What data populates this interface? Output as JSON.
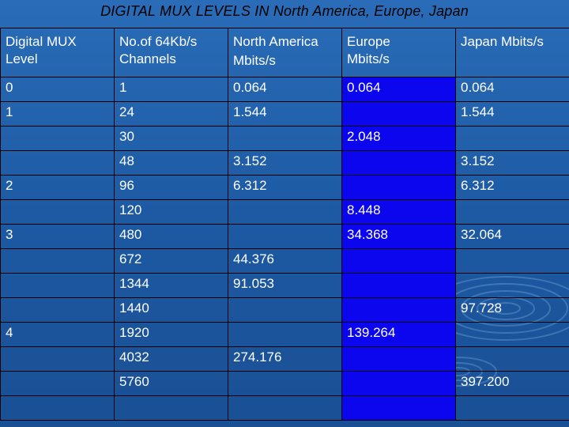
{
  "title": "DIGITAL MUX LEVELS IN North America, Europe, Japan",
  "columns": {
    "level": "Digital MUX Level",
    "channels": "No.of 64Kb/s Channels",
    "north_america_line1": "North America",
    "north_america_line2": "Mbits/s",
    "europe": "Europe Mbits/s",
    "japan": "Japan Mbits/s"
  },
  "rows": [
    {
      "level": "0",
      "channels": "1",
      "north_america": "0.064",
      "europe": "0.064",
      "japan": "0.064"
    },
    {
      "level": "1",
      "channels": "24",
      "north_america": "1.544",
      "europe": "",
      "japan": "1.544"
    },
    {
      "level": "",
      "channels": "30",
      "north_america": "",
      "europe": "2.048",
      "japan": ""
    },
    {
      "level": "",
      "channels": "48",
      "north_america": "3.152",
      "europe": "",
      "japan": "3.152"
    },
    {
      "level": "2",
      "channels": "96",
      "north_america": "6.312",
      "europe": "",
      "japan": "6.312"
    },
    {
      "level": "",
      "channels": "120",
      "north_america": "",
      "europe": "8.448",
      "japan": ""
    },
    {
      "level": "3",
      "channels": "480",
      "north_america": "",
      "europe": "34.368",
      "japan": "32.064"
    },
    {
      "level": "",
      "channels": "672",
      "north_america": "44.376",
      "europe": "",
      "japan": ""
    },
    {
      "level": "",
      "channels": "1344",
      "north_america": "91.053",
      "europe": "",
      "japan": ""
    },
    {
      "level": "",
      "channels": "1440",
      "north_america": "",
      "europe": "",
      "japan": "97.728"
    },
    {
      "level": "4",
      "channels": "1920",
      "north_america": "",
      "europe": "139.264",
      "japan": ""
    },
    {
      "level": "",
      "channels": "4032",
      "north_america": "274.176",
      "europe": "",
      "japan": ""
    },
    {
      "level": "",
      "channels": "5760",
      "north_america": "",
      "europe": "",
      "japan": "397.200"
    },
    {
      "level": "",
      "channels": "",
      "north_america": "",
      "europe": "",
      "japan": ""
    }
  ],
  "colors": {
    "background": "#1d5aa3",
    "europe_column": "#0b06ee",
    "title_text": "#000000",
    "cell_text": "#ffffff"
  }
}
